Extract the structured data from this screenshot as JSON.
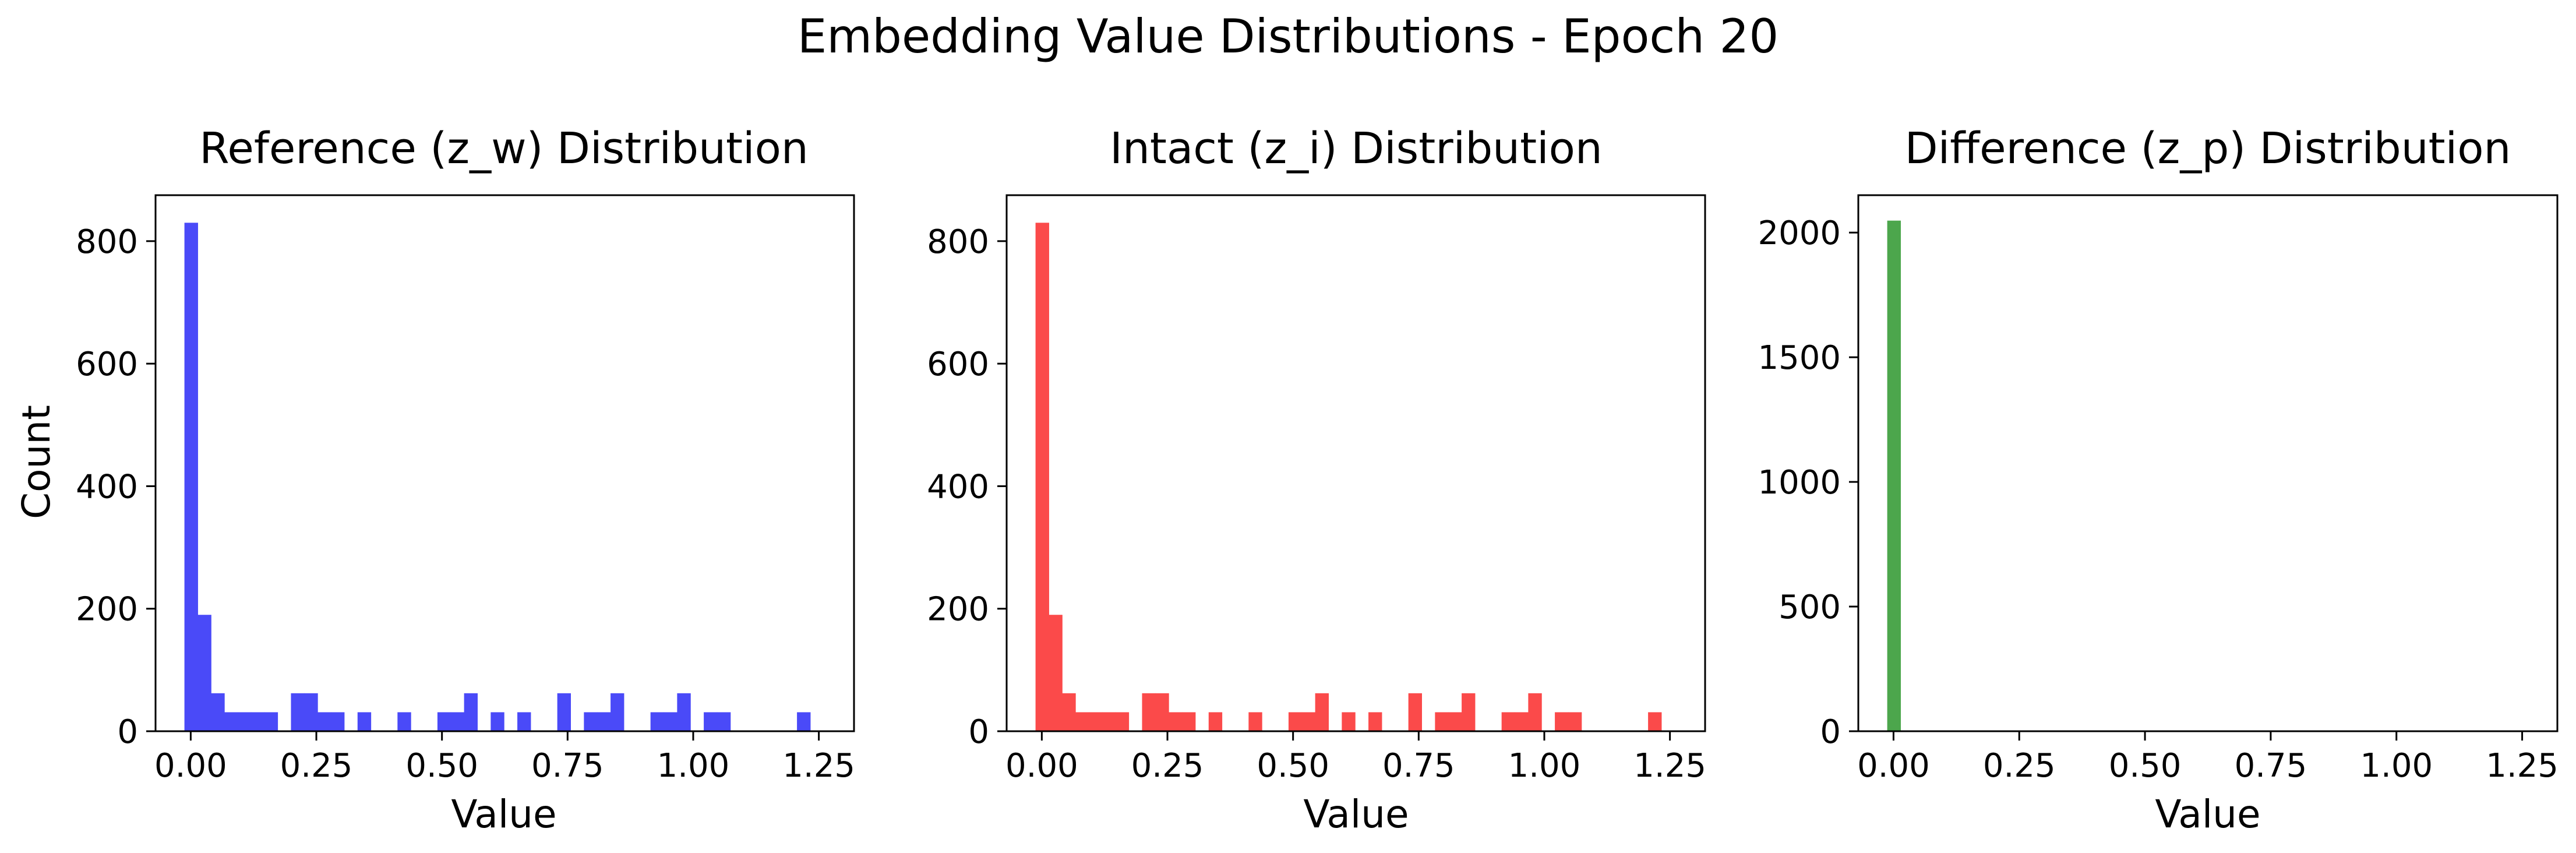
{
  "figure": {
    "title": "Embedding Value Distributions - Epoch 20"
  },
  "chart_data": [
    {
      "type": "bar",
      "title": "Reference (z_w) Distribution",
      "xlabel": "Value",
      "ylabel": "Count",
      "color": "#4a4af8",
      "xlim": [
        -0.07,
        1.32
      ],
      "ylim": [
        0,
        875
      ],
      "xticks": [
        0.0,
        0.25,
        0.5,
        0.75,
        1.0,
        1.25
      ],
      "xtick_labels": [
        "0.00",
        "0.25",
        "0.50",
        "0.75",
        "1.00",
        "1.25"
      ],
      "yticks": [
        0,
        200,
        400,
        600,
        800
      ],
      "ytick_labels": [
        "0",
        "200",
        "400",
        "600",
        "800"
      ],
      "bin_start": -0.0125,
      "bin_width": 0.0265,
      "counts": [
        830,
        190,
        62,
        31,
        31,
        31,
        31,
        0,
        62,
        62,
        31,
        31,
        0,
        31,
        0,
        0,
        31,
        0,
        0,
        31,
        31,
        62,
        0,
        31,
        0,
        31,
        0,
        0,
        62,
        0,
        31,
        31,
        62,
        0,
        0,
        31,
        31,
        62,
        0,
        31,
        31,
        0,
        0,
        0,
        0,
        0,
        31,
        0,
        0,
        0
      ]
    },
    {
      "type": "bar",
      "title": "Intact (z_i) Distribution",
      "xlabel": "Value",
      "ylabel": "",
      "color": "#fb4a4a",
      "xlim": [
        -0.07,
        1.32
      ],
      "ylim": [
        0,
        875
      ],
      "xticks": [
        0.0,
        0.25,
        0.5,
        0.75,
        1.0,
        1.25
      ],
      "xtick_labels": [
        "0.00",
        "0.25",
        "0.50",
        "0.75",
        "1.00",
        "1.25"
      ],
      "yticks": [
        0,
        200,
        400,
        600,
        800
      ],
      "ytick_labels": [
        "0",
        "200",
        "400",
        "600",
        "800"
      ],
      "bin_start": -0.0125,
      "bin_width": 0.0265,
      "counts": [
        830,
        190,
        62,
        31,
        31,
        31,
        31,
        0,
        62,
        62,
        31,
        31,
        0,
        31,
        0,
        0,
        31,
        0,
        0,
        31,
        31,
        62,
        0,
        31,
        0,
        31,
        0,
        0,
        62,
        0,
        31,
        31,
        62,
        0,
        0,
        31,
        31,
        62,
        0,
        31,
        31,
        0,
        0,
        0,
        0,
        0,
        31,
        0,
        0,
        0
      ]
    },
    {
      "type": "bar",
      "title": "Difference (z_p) Distribution",
      "xlabel": "Value",
      "ylabel": "",
      "color": "#4ca64c",
      "xlim": [
        -0.07,
        1.32
      ],
      "ylim": [
        0,
        2150
      ],
      "xticks": [
        0.0,
        0.25,
        0.5,
        0.75,
        1.0,
        1.25
      ],
      "xtick_labels": [
        "0.00",
        "0.25",
        "0.50",
        "0.75",
        "1.00",
        "1.25"
      ],
      "yticks": [
        0,
        500,
        1000,
        1500,
        2000
      ],
      "ytick_labels": [
        "0",
        "500",
        "1000",
        "1500",
        "2000"
      ],
      "bin_start": -0.0125,
      "bin_width": 0.0265,
      "counts": [
        2048
      ]
    }
  ]
}
